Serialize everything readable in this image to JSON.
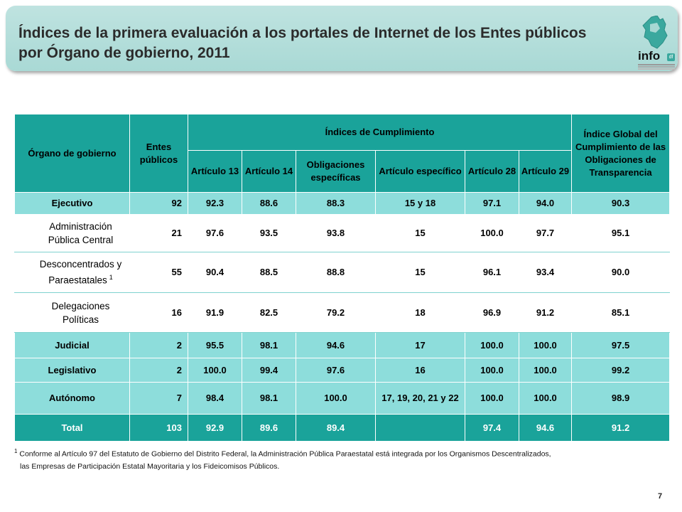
{
  "header": {
    "title": "Índices de la primera evaluación a los portales de Internet de los Entes públicos por Órgano de gobierno, 2011",
    "logo_text": "info",
    "logo_badge": "df"
  },
  "table": {
    "headers": {
      "organo": "Órgano de gobierno",
      "entes": "Entes públicos",
      "indices": "Índices de Cumplimiento",
      "global": "Índice Global del Cumplimiento de las Obligaciones de Transparencia",
      "sub": [
        "Artículo 13",
        "Artículo 14",
        "Obligaciones específicas",
        "Artículo específico",
        "Artículo 28",
        "Artículo 29"
      ]
    },
    "rows": [
      {
        "name": "Ejecutivo",
        "entes": "92",
        "a13": "92.3",
        "a14": "88.6",
        "oblig": "88.3",
        "art_esp": "15 y 18",
        "a28": "97.1",
        "a29": "94.0",
        "global": "90.3"
      },
      {
        "name": "Administración Pública Central",
        "entes": "21",
        "a13": "97.6",
        "a14": "93.5",
        "oblig": "93.8",
        "art_esp": "15",
        "a28": "100.0",
        "a29": "97.7",
        "global": "95.1"
      },
      {
        "name": "Desconcentrados y Paraestatales",
        "sup": "1",
        "entes": "55",
        "a13": "90.4",
        "a14": "88.5",
        "oblig": "88.8",
        "art_esp": "15",
        "a28": "96.1",
        "a29": "93.4",
        "global": "90.0"
      },
      {
        "name": "Delegaciones Políticas",
        "entes": "16",
        "a13": "91.9",
        "a14": "82.5",
        "oblig": "79.2",
        "art_esp": "18",
        "a28": "96.9",
        "a29": "91.2",
        "global": "85.1"
      },
      {
        "name": "Judicial",
        "entes": "2",
        "a13": "95.5",
        "a14": "98.1",
        "oblig": "94.6",
        "art_esp": "17",
        "a28": "100.0",
        "a29": "100.0",
        "global": "97.5"
      },
      {
        "name": "Legislativo",
        "entes": "2",
        "a13": "100.0",
        "a14": "99.4",
        "oblig": "97.6",
        "art_esp": "16",
        "a28": "100.0",
        "a29": "100.0",
        "global": "99.2"
      },
      {
        "name": "Autónomo",
        "entes": "7",
        "a13": "98.4",
        "a14": "98.1",
        "oblig": "100.0",
        "art_esp": "17, 19, 20, 21 y 22",
        "a28": "100.0",
        "a29": "100.0",
        "global": "98.9"
      },
      {
        "name": "Total",
        "entes": "103",
        "a13": "92.9",
        "a14": "89.6",
        "oblig": "89.4",
        "art_esp": "",
        "a28": "97.4",
        "a29": "94.6",
        "global": "91.2"
      }
    ]
  },
  "footnote": {
    "mark": "1",
    "line1": "Conforme al Artículo 97 del Estatuto de Gobierno del Distrito Federal, la Administración Pública Paraestatal está integrada por los Organismos Descentralizados,",
    "line2": "las Empresas de Participación Estatal Mayoritaria y los Fideicomisos Públicos."
  },
  "page_number": "7",
  "colors": {
    "header_teal": "#1aa39a",
    "row_teal": "#8ddddb",
    "banner": "#bfe3e0"
  }
}
